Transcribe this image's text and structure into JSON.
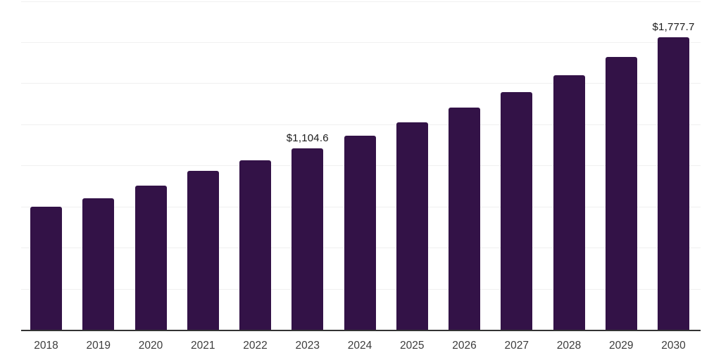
{
  "chart_data": {
    "type": "bar",
    "title": "",
    "xlabel": "",
    "ylabel": "",
    "categories": [
      "2018",
      "2019",
      "2020",
      "2021",
      "2022",
      "2023",
      "2024",
      "2025",
      "2026",
      "2027",
      "2028",
      "2029",
      "2030"
    ],
    "values": [
      750,
      800,
      875,
      967,
      1031,
      1104.6,
      1181,
      1263,
      1353,
      1444,
      1548,
      1662,
      1777.7
    ],
    "data_labels": [
      "",
      "",
      "",
      "",
      "",
      "$1,104.6",
      "",
      "",
      "",
      "",
      "",
      "",
      "$1,777.7"
    ],
    "ylim": [
      0,
      2000
    ],
    "gridline_step": 250,
    "grid": "horizontal-only",
    "legend": "none",
    "y_axis_labels_visible": false,
    "colors": {
      "bar": "#331247",
      "axis_line": "#333333",
      "gridline": "#f0f0f0",
      "data_label_text": "#1a1a1a",
      "tick_label_text": "#3c3c3c",
      "background": "#ffffff"
    }
  }
}
